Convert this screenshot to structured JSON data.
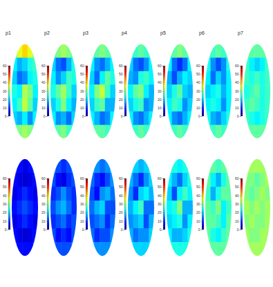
{
  "chart_data": [
    {
      "type": "heatmap",
      "title": "p1",
      "tick_labels": false,
      "zlim": [
        0,
        60
      ],
      "zticks": [
        0,
        10,
        20,
        30,
        40,
        50,
        60
      ],
      "cells": [
        [
          30,
          36,
          40,
          36,
          30
        ],
        [
          22,
          18,
          20,
          24,
          26
        ],
        [
          20,
          14,
          16,
          22,
          24
        ],
        [
          24,
          22,
          33,
          30,
          22
        ],
        [
          22,
          26,
          34,
          28,
          20
        ],
        [
          20,
          18,
          22,
          16,
          22
        ],
        [
          28,
          30,
          32,
          30,
          28
        ]
      ]
    },
    {
      "type": "heatmap",
      "title": "p2",
      "tick_labels": false,
      "zlim": [
        0,
        60
      ],
      "zticks": [
        0,
        10,
        20,
        30,
        40,
        50,
        60
      ],
      "cells": [
        [
          26,
          30,
          32,
          30,
          26
        ],
        [
          20,
          14,
          12,
          18,
          24
        ],
        [
          22,
          16,
          20,
          26,
          24
        ],
        [
          24,
          28,
          32,
          26,
          20
        ],
        [
          20,
          24,
          30,
          22,
          18
        ],
        [
          22,
          16,
          18,
          14,
          20
        ],
        [
          26,
          28,
          30,
          26,
          24
        ]
      ]
    },
    {
      "type": "heatmap",
      "title": "p3",
      "tick_labels": false,
      "zlim": [
        0,
        60
      ],
      "zticks": [
        0,
        10,
        20,
        30,
        40,
        50,
        60
      ],
      "cells": [
        [
          26,
          28,
          30,
          28,
          26
        ],
        [
          22,
          16,
          14,
          18,
          22
        ],
        [
          20,
          14,
          22,
          28,
          24
        ],
        [
          22,
          30,
          34,
          26,
          20
        ],
        [
          20,
          26,
          28,
          18,
          18
        ],
        [
          22,
          18,
          14,
          16,
          22
        ],
        [
          26,
          28,
          28,
          26,
          26
        ]
      ]
    },
    {
      "type": "heatmap",
      "title": "p4",
      "tick_labels": false,
      "zlim": [
        0,
        60
      ],
      "zticks": [
        0,
        10,
        20,
        30,
        40,
        50,
        60
      ],
      "cells": [
        [
          24,
          26,
          28,
          26,
          24
        ],
        [
          20,
          14,
          12,
          16,
          22
        ],
        [
          18,
          16,
          24,
          26,
          22
        ],
        [
          22,
          28,
          30,
          22,
          18
        ],
        [
          20,
          24,
          26,
          16,
          18
        ],
        [
          22,
          16,
          14,
          18,
          22
        ],
        [
          24,
          26,
          28,
          26,
          24
        ]
      ]
    },
    {
      "type": "heatmap",
      "title": "p5",
      "tick_labels": false,
      "zlim": [
        0,
        60
      ],
      "zticks": [
        0,
        10,
        20,
        30,
        40,
        50,
        60
      ],
      "cells": [
        [
          26,
          28,
          30,
          28,
          26
        ],
        [
          22,
          14,
          10,
          14,
          22
        ],
        [
          18,
          12,
          18,
          22,
          20
        ],
        [
          20,
          24,
          28,
          20,
          18
        ],
        [
          22,
          26,
          24,
          16,
          20
        ],
        [
          22,
          16,
          14,
          18,
          22
        ],
        [
          26,
          26,
          28,
          26,
          26
        ]
      ]
    },
    {
      "type": "heatmap",
      "title": "p6",
      "tick_labels": false,
      "zlim": [
        0,
        60
      ],
      "zticks": [
        0,
        10,
        20,
        30,
        40,
        50,
        60
      ],
      "cells": [
        [
          26,
          26,
          28,
          26,
          26
        ],
        [
          24,
          16,
          12,
          16,
          24
        ],
        [
          22,
          14,
          20,
          16,
          22
        ],
        [
          20,
          22,
          24,
          18,
          22
        ],
        [
          22,
          24,
          22,
          16,
          22
        ],
        [
          24,
          18,
          16,
          20,
          24
        ],
        [
          26,
          26,
          28,
          26,
          26
        ]
      ]
    },
    {
      "type": "heatmap",
      "title": "p7",
      "tick_labels": false,
      "zlim": [
        0,
        60
      ],
      "zticks": [
        0,
        10,
        20,
        30,
        40,
        50,
        60
      ],
      "cells": [
        [
          28,
          28,
          28,
          28,
          28
        ],
        [
          26,
          22,
          20,
          22,
          26
        ],
        [
          26,
          24,
          26,
          24,
          26
        ],
        [
          24,
          26,
          28,
          24,
          26
        ],
        [
          26,
          28,
          26,
          24,
          26
        ],
        [
          26,
          24,
          22,
          24,
          26
        ],
        [
          28,
          28,
          28,
          28,
          28
        ]
      ]
    },
    {
      "type": "heatmap",
      "tick_labels": false,
      "zlim": [
        0,
        60
      ],
      "zticks": [
        0,
        10,
        20,
        30,
        40,
        50,
        60
      ],
      "cells": [
        [
          10,
          8,
          6,
          8,
          10
        ],
        [
          8,
          6,
          5,
          6,
          8
        ],
        [
          6,
          8,
          10,
          8,
          6
        ],
        [
          8,
          10,
          12,
          10,
          8
        ],
        [
          6,
          8,
          10,
          8,
          6
        ],
        [
          8,
          6,
          5,
          6,
          8
        ],
        [
          10,
          8,
          8,
          8,
          10
        ]
      ]
    },
    {
      "type": "heatmap",
      "tick_labels": false,
      "zlim": [
        0,
        60
      ],
      "zticks": [
        0,
        10,
        20,
        30,
        40,
        50,
        60
      ],
      "cells": [
        [
          14,
          12,
          10,
          12,
          14
        ],
        [
          12,
          8,
          6,
          10,
          12
        ],
        [
          10,
          12,
          16,
          12,
          10
        ],
        [
          12,
          16,
          18,
          14,
          10
        ],
        [
          10,
          12,
          14,
          10,
          12
        ],
        [
          12,
          8,
          10,
          8,
          12
        ],
        [
          14,
          12,
          12,
          12,
          14
        ]
      ]
    },
    {
      "type": "heatmap",
      "tick_labels": false,
      "zlim": [
        0,
        60
      ],
      "zticks": [
        0,
        10,
        20,
        30,
        40,
        50,
        60
      ],
      "cells": [
        [
          18,
          16,
          14,
          16,
          18
        ],
        [
          14,
          10,
          8,
          12,
          16
        ],
        [
          12,
          8,
          16,
          18,
          14
        ],
        [
          14,
          18,
          20,
          12,
          12
        ],
        [
          12,
          14,
          16,
          10,
          14
        ],
        [
          14,
          10,
          12,
          12,
          16
        ],
        [
          18,
          16,
          16,
          16,
          18
        ]
      ]
    },
    {
      "type": "heatmap",
      "tick_labels": false,
      "zlim": [
        0,
        60
      ],
      "zticks": [
        0,
        10,
        20,
        30,
        40,
        50,
        60
      ],
      "cells": [
        [
          22,
          20,
          18,
          20,
          22
        ],
        [
          18,
          14,
          10,
          16,
          20
        ],
        [
          16,
          10,
          20,
          22,
          18
        ],
        [
          18,
          22,
          26,
          14,
          14
        ],
        [
          16,
          18,
          20,
          12,
          18
        ],
        [
          18,
          14,
          16,
          16,
          20
        ],
        [
          22,
          20,
          20,
          20,
          22
        ]
      ]
    },
    {
      "type": "heatmap",
      "tick_labels": false,
      "zlim": [
        0,
        60
      ],
      "zticks": [
        0,
        10,
        20,
        30,
        40,
        50,
        60
      ],
      "cells": [
        [
          26,
          24,
          22,
          24,
          26
        ],
        [
          22,
          18,
          14,
          20,
          24
        ],
        [
          20,
          12,
          22,
          26,
          22
        ],
        [
          22,
          24,
          30,
          18,
          18
        ],
        [
          20,
          22,
          24,
          16,
          22
        ],
        [
          22,
          18,
          18,
          20,
          24
        ],
        [
          26,
          24,
          24,
          24,
          26
        ]
      ]
    },
    {
      "type": "heatmap",
      "tick_labels": false,
      "zlim": [
        0,
        60
      ],
      "zticks": [
        0,
        10,
        20,
        30,
        40,
        50,
        60
      ],
      "cells": [
        [
          30,
          28,
          26,
          28,
          30
        ],
        [
          28,
          22,
          18,
          24,
          28
        ],
        [
          26,
          18,
          24,
          28,
          28
        ],
        [
          28,
          26,
          30,
          22,
          26
        ],
        [
          28,
          28,
          26,
          22,
          28
        ],
        [
          28,
          24,
          22,
          26,
          28
        ],
        [
          30,
          28,
          28,
          28,
          30
        ]
      ]
    },
    {
      "type": "heatmap",
      "tick_labels": false,
      "zlim": [
        0,
        60
      ],
      "zticks": [
        0,
        10,
        20,
        30,
        40,
        50,
        60
      ],
      "cells": [
        [
          32,
          32,
          32,
          32,
          32
        ],
        [
          30,
          30,
          28,
          30,
          32
        ],
        [
          30,
          28,
          30,
          32,
          30
        ],
        [
          32,
          30,
          32,
          30,
          32
        ],
        [
          30,
          32,
          30,
          30,
          32
        ],
        [
          32,
          30,
          30,
          32,
          32
        ],
        [
          32,
          32,
          32,
          32,
          32
        ]
      ]
    }
  ]
}
